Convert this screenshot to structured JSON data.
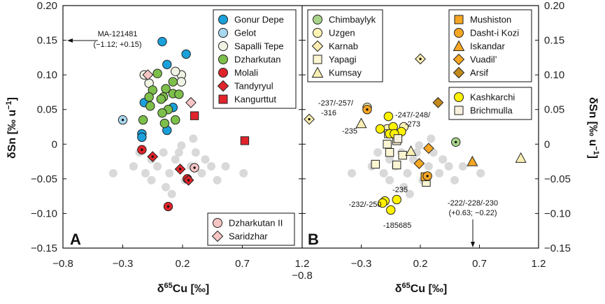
{
  "colors": {
    "gonur": "#1aa0db",
    "gelot": "#a8d8f0",
    "sapalli": "#eef3e4",
    "dzharkutan": "#7cbf4a",
    "molali": "#e0242b",
    "tandyryul": "#e0242b",
    "kangurttut": "#e0242b",
    "dzharkutan2": "#f7c4c4",
    "saridzhar": "#f7c4c4",
    "chimbaylyk": "#a8d48a",
    "uzgen": "#fdf3b4",
    "karnab": "#fbeeb0",
    "yapagi": "#fbf5d2",
    "kumsay": "#fbf0b4",
    "mushiston": "#f5a623",
    "dasht": "#f5a623",
    "iskandar": "#f5a623",
    "vuadil": "#f5a623",
    "arsif": "#c28a1c",
    "kashkarchi": "#fff200",
    "brichmulla": "#f8f0dc",
    "background": "#d9d9d9"
  },
  "chart_data": [
    {
      "panel": "A",
      "type": "scatter",
      "xlabel": "δ65Cu [‰]",
      "ylabel": "δSn [‰ u−1]",
      "xlim": [
        -0.8,
        1.2
      ],
      "ylim": [
        -0.15,
        0.2
      ],
      "xticks": [
        "−0.8",
        "−0.3",
        "0.2",
        "0.7",
        "1.2"
      ],
      "yticks": [
        "0.20",
        "0.15",
        "0.10",
        "0.05",
        "0",
        "−0.05",
        "−0.10",
        "−0.15"
      ],
      "background_points": [
        [
          -0.38,
          -0.042
        ],
        [
          -0.21,
          -0.032
        ],
        [
          -0.16,
          -0.012
        ],
        [
          -0.11,
          -0.042
        ],
        [
          -0.06,
          -0.052
        ],
        [
          -0.01,
          -0.032
        ],
        [
          0.04,
          -0.012
        ],
        [
          0.09,
          -0.042
        ],
        [
          0.11,
          -0.072
        ],
        [
          0.14,
          -0.022
        ],
        [
          0.19,
          -0.002
        ],
        [
          0.22,
          -0.052
        ],
        [
          0.27,
          -0.032
        ],
        [
          0.31,
          -0.012
        ],
        [
          0.36,
          -0.042
        ],
        [
          0.39,
          -0.022
        ],
        [
          0.44,
          -0.032
        ],
        [
          0.49,
          -0.052
        ],
        [
          0.56,
          -0.032
        ],
        [
          0.71,
          -0.042
        ],
        [
          0.06,
          -0.062
        ],
        [
          0.17,
          -0.012
        ],
        [
          -0.06,
          -0.022
        ],
        [
          0.29,
          0.008
        ]
      ],
      "series": [
        {
          "name": "Gonur Depe",
          "marker": "circle",
          "color_key": "gonur",
          "points": [
            [
              -0.12,
              0.06
            ],
            [
              0.03,
              0.148
            ],
            [
              0.07,
              0.115
            ],
            [
              0.23,
              0.13
            ],
            [
              -0.14,
              0.015
            ],
            [
              0.12,
              0.053
            ],
            [
              -0.14,
              0.01
            ],
            [
              0.07,
              0.02
            ]
          ]
        },
        {
          "name": "Gelot",
          "marker": "circle",
          "color_key": "gelot",
          "dot": true,
          "points": [
            [
              -0.3,
              0.035
            ]
          ]
        },
        {
          "name": "Sapalli Tepe",
          "marker": "circle",
          "color_key": "sapalli",
          "points": [
            [
              -0.12,
              0.1
            ],
            [
              -0.08,
              0.088
            ],
            [
              0.19,
              0.1
            ],
            [
              0.14,
              0.105
            ],
            [
              0.19,
              0.09
            ]
          ]
        },
        {
          "name": "Dzharkutan",
          "marker": "circle",
          "color_key": "dzharkutan",
          "points": [
            [
              -0.05,
              0.078
            ],
            [
              -0.01,
              0.102
            ],
            [
              0.06,
              0.08
            ],
            [
              0.12,
              0.09
            ],
            [
              -0.08,
              0.068
            ],
            [
              0.04,
              0.068
            ],
            [
              -0.13,
              0.035
            ],
            [
              -0.07,
              0.055
            ],
            [
              0.02,
              0.065
            ],
            [
              0.08,
              0.05
            ],
            [
              0.12,
              0.073
            ],
            [
              0.17,
              0.072
            ],
            [
              0.05,
              0.03
            ],
            [
              0.14,
              0.035
            ],
            [
              0.03,
              0.045
            ]
          ]
        },
        {
          "name": "Molali",
          "marker": "circle",
          "color_key": "molali",
          "dot": true,
          "points": [
            [
              -0.14,
              -0.008
            ],
            [
              0.08,
              -0.09
            ],
            [
              0.24,
              -0.05
            ]
          ]
        },
        {
          "name": "Tandyryul",
          "marker": "diamond",
          "color_key": "tandyryul",
          "dot": true,
          "points": [
            [
              -0.05,
              -0.018
            ],
            [
              0.18,
              -0.036
            ],
            [
              0.25,
              -0.052
            ]
          ]
        },
        {
          "name": "Kangurttut",
          "marker": "square",
          "color_key": "kangurttut",
          "points": [
            [
              0.3,
              0.041
            ],
            [
              0.72,
              0.005
            ]
          ]
        },
        {
          "name": "Dzharkutan II",
          "marker": "circle",
          "color_key": "dzharkutan2",
          "dot": true,
          "points": [
            [
              0.3,
              -0.034
            ]
          ]
        },
        {
          "name": "Saridzhar",
          "marker": "diamond",
          "color_key": "saridzhar",
          "points": [
            [
              -0.09,
              0.1
            ],
            [
              0.27,
              0.06
            ]
          ]
        }
      ],
      "annotations": {
        "outlier": "MA-121481",
        "outlier_coords": "(−1.12; +0.15)"
      },
      "legend_top": [
        "Gonur Depe",
        "Gelot",
        "Sapalli Tepe",
        "Dzharkutan",
        "Molali",
        "Tandyryul",
        "Kangurttut"
      ],
      "legend_bottom": [
        "Dzharkutan II",
        "Saridzhar"
      ]
    },
    {
      "panel": "B",
      "type": "scatter",
      "xlabel": "δ65Cu [‰]",
      "ylabel": "δSn [‰ u−1]",
      "xlim": [
        -0.8,
        1.2
      ],
      "ylim": [
        -0.15,
        0.2
      ],
      "xticks": [
        "−0.8",
        "−0.3",
        "0.2",
        "0.7",
        "1.2"
      ],
      "yticks": [
        "0.20",
        "0.15",
        "0.10",
        "0.05",
        "0",
        "−0.05",
        "−0.10",
        "−0.15"
      ],
      "background_points": [
        [
          -0.38,
          -0.042
        ],
        [
          -0.21,
          -0.032
        ],
        [
          -0.16,
          -0.012
        ],
        [
          -0.11,
          -0.042
        ],
        [
          -0.06,
          -0.052
        ],
        [
          -0.01,
          -0.032
        ],
        [
          0.04,
          -0.012
        ],
        [
          0.09,
          -0.042
        ],
        [
          0.11,
          -0.072
        ],
        [
          0.14,
          -0.022
        ],
        [
          0.19,
          -0.002
        ],
        [
          0.22,
          -0.052
        ],
        [
          0.27,
          -0.032
        ],
        [
          0.31,
          -0.012
        ],
        [
          0.36,
          -0.042
        ],
        [
          0.39,
          -0.022
        ],
        [
          0.44,
          -0.032
        ],
        [
          0.49,
          -0.052
        ],
        [
          0.56,
          -0.032
        ],
        [
          0.71,
          -0.042
        ],
        [
          0.06,
          -0.062
        ],
        [
          0.17,
          -0.012
        ],
        [
          -0.06,
          -0.022
        ],
        [
          0.29,
          0.008
        ]
      ],
      "series": [
        {
          "name": "Chimbaylyk",
          "marker": "circle",
          "color_key": "chimbaylyk",
          "dot": true,
          "points": [
            [
              0.5,
              0.003
            ]
          ]
        },
        {
          "name": "Uzgen",
          "marker": "circle",
          "color_key": "uzgen",
          "points": [
            [
              -0.25,
              0.053
            ],
            [
              -0.08,
              0.022
            ],
            [
              0.06,
              0.025
            ]
          ]
        },
        {
          "name": "Karnab",
          "marker": "diamond",
          "color_key": "karnab",
          "dot": true,
          "points": [
            [
              -0.74,
              0.036
            ],
            [
              0.2,
              0.123
            ]
          ]
        },
        {
          "name": "Yapagi",
          "marker": "square",
          "color_key": "yapagi",
          "points": [
            [
              -0.07,
              0.015
            ],
            [
              -0.08,
              0.0
            ],
            [
              0.0,
              0.005
            ],
            [
              -0.06,
              -0.012
            ],
            [
              0.05,
              -0.016
            ],
            [
              -0.18,
              -0.029
            ],
            [
              0.0,
              -0.03
            ],
            [
              0.25,
              -0.055
            ]
          ]
        },
        {
          "name": "Kumsay",
          "marker": "triangle",
          "color_key": "kumsay",
          "points": [
            [
              -0.3,
              0.03
            ],
            [
              0.12,
              -0.01
            ],
            [
              1.05,
              -0.02
            ]
          ]
        },
        {
          "name": "Mushiston",
          "marker": "square",
          "color_key": "mushiston",
          "points": [
            [
              0.24,
              -0.047
            ]
          ]
        },
        {
          "name": "Dasht-i Kozi",
          "marker": "circle",
          "color_key": "dasht",
          "dot": true,
          "points": [
            [
              -0.25,
              0.05
            ],
            [
              0.26,
              -0.046
            ]
          ]
        },
        {
          "name": "Iskandar",
          "marker": "triangle",
          "color_key": "iskandar",
          "points": [
            [
              0.64,
              -0.025
            ]
          ]
        },
        {
          "name": "Vuadil’",
          "marker": "diamond",
          "color_key": "vuadil",
          "points": [
            [
              0.27,
              -0.006
            ],
            [
              0.19,
              -0.028
            ]
          ]
        },
        {
          "name": "Arsif",
          "marker": "diamond",
          "color_key": "arsif",
          "points": [
            [
              0.35,
              0.06
            ]
          ]
        },
        {
          "name": "Kashkarchi",
          "marker": "circle",
          "color_key": "kashkarchi",
          "points": [
            [
              -0.14,
              0.022
            ],
            [
              -0.07,
              0.04
            ],
            [
              -0.03,
              0.025
            ],
            [
              -0.06,
              0.015
            ],
            [
              0.04,
              0.018
            ],
            [
              -0.02,
              0.015
            ],
            [
              0.0,
              -0.08
            ],
            [
              -0.1,
              -0.082
            ],
            [
              -0.12,
              -0.085
            ],
            [
              -0.05,
              -0.095
            ]
          ]
        },
        {
          "name": "Brichmulla",
          "marker": "square",
          "color_key": "brichmulla",
          "points": [
            [
              0.01,
              0.008
            ]
          ]
        }
      ],
      "annotations": {
        "label_237": "-237/-257/",
        "label_316": "-316",
        "label_247": "-247/-248/",
        "label_273": "-273",
        "label_235a": "-235",
        "label_235b": "-235",
        "label_232": "-232/-250",
        "label_185685": "-185685",
        "label_222": "-222/-228/-230",
        "label_222_coords": "(+0.63; −0.22)"
      },
      "legend_left": [
        "Chimbaylyk",
        "Uzgen",
        "Karnab",
        "Yapagi",
        "Kumsay"
      ],
      "legend_right": [
        "Mushiston",
        "Dasht-i Kozi",
        "Iskandar",
        "Vuadil’",
        "Arsif"
      ],
      "legend_bottom": [
        "Kashkarchi",
        "Brichmulla"
      ]
    }
  ],
  "labels": {
    "panelA": "A",
    "panelB": "B",
    "xlabel": "δ65Cu [‰]",
    "ylabel_left": "δSn [‰ u−1]",
    "ylabel_right": "δSn [‰ u−1]",
    "xtickExtra": "−0.8"
  }
}
